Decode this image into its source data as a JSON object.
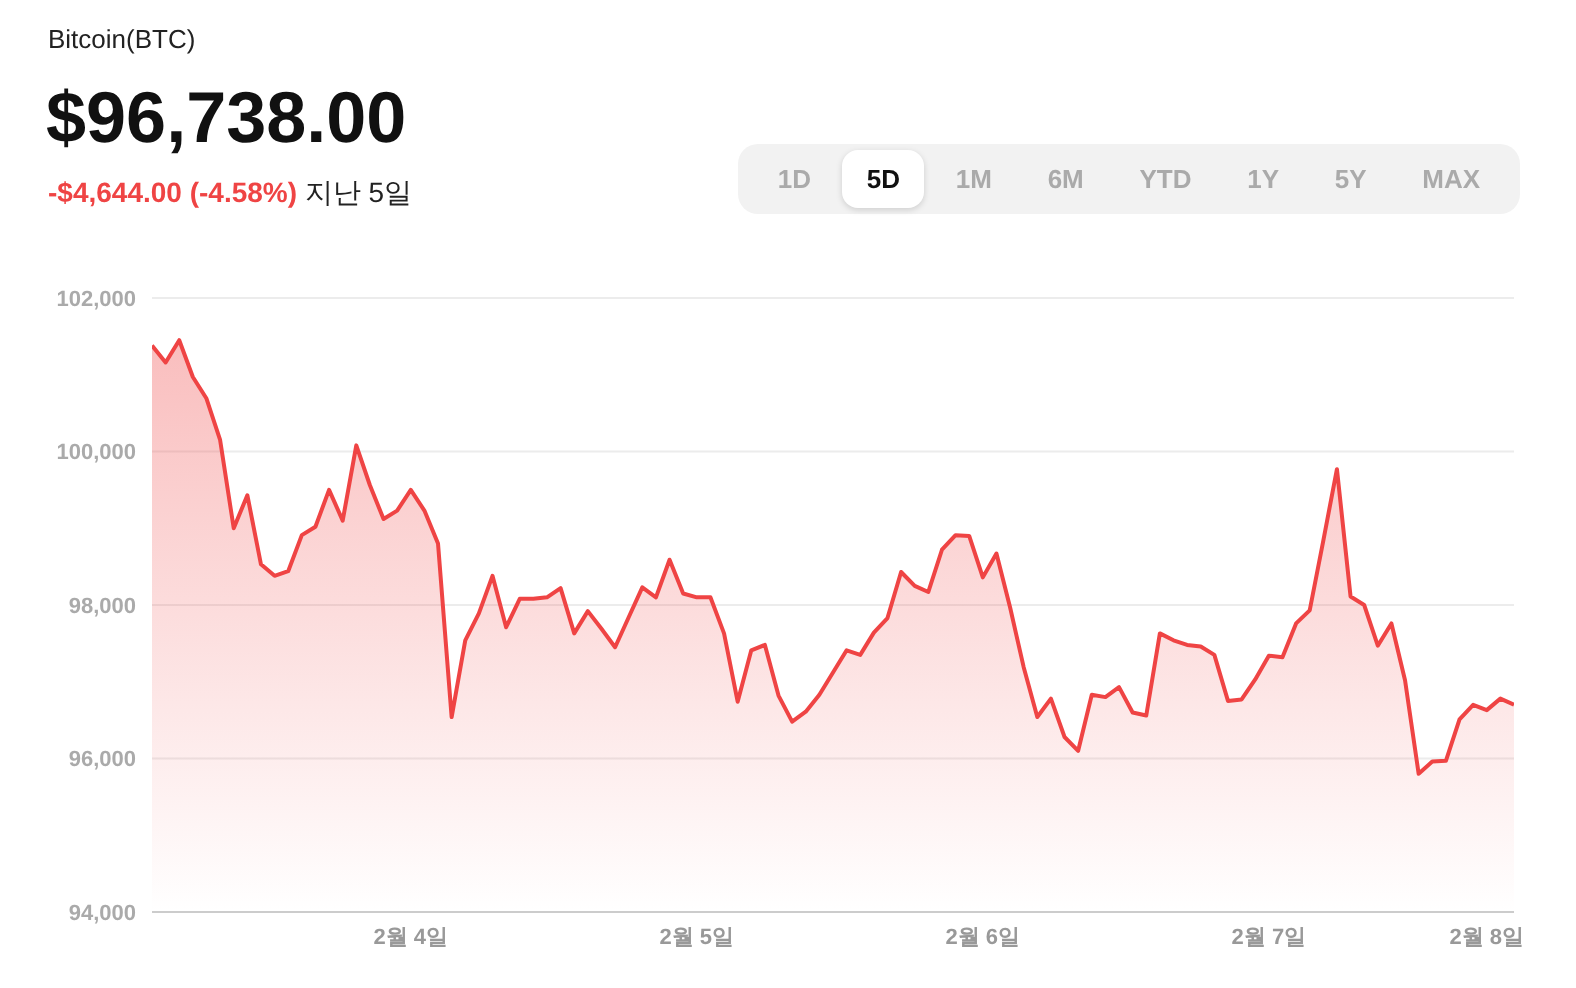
{
  "chart_data": {
    "type": "area",
    "title": "Bitcoin(BTC)",
    "subtitle": "$96,738.00",
    "annotations": [
      "-$4,644.00 (-4.58%)",
      "지난 5일",
      "1D",
      "5D",
      "1M",
      "6M",
      "YTD",
      "1Y",
      "5Y",
      "MAX"
    ],
    "categories": [
      null,
      null,
      null,
      null,
      null,
      null,
      null,
      null,
      null,
      null,
      null,
      null,
      null,
      null,
      null,
      null,
      null,
      null,
      null,
      "2월 4일",
      null,
      null,
      null,
      null,
      null,
      null,
      null,
      null,
      null,
      null,
      null,
      null,
      null,
      null,
      null,
      null,
      null,
      null,
      null,
      null,
      "2월 5일",
      null,
      null,
      null,
      null,
      null,
      null,
      null,
      null,
      null,
      null,
      null,
      null,
      null,
      null,
      null,
      null,
      null,
      null,
      null,
      null,
      "2월 6일",
      null,
      null,
      null,
      null,
      null,
      null,
      null,
      null,
      null,
      null,
      null,
      null,
      null,
      null,
      null,
      null,
      null,
      null,
      null,
      null,
      "2월 7일",
      null,
      null,
      null,
      null,
      null,
      null,
      null,
      null,
      null,
      null,
      null,
      null,
      null,
      null,
      null,
      "2월 8일",
      null,
      null
    ],
    "series": [
      {
        "color": "#ef4444",
        "values": [
          101380,
          101160,
          101450,
          100970,
          100690,
          100150,
          99000,
          99430,
          98530,
          98380,
          98440,
          98910,
          99020,
          99500,
          99100,
          100080,
          99560,
          99120,
          99230,
          99500,
          99230,
          98800,
          96540,
          97540,
          97890,
          98380,
          97710,
          98080,
          98080,
          98100,
          98220,
          97630,
          97920,
          97690,
          97450,
          97840,
          98230,
          98100,
          98590,
          98150,
          98100,
          98100,
          97630,
          96740,
          97410,
          97480,
          96820,
          96480,
          96610,
          96830,
          97120,
          97410,
          97350,
          97640,
          97830,
          98430,
          98250,
          98170,
          98720,
          98910,
          98900,
          98360,
          98670,
          97970,
          97190,
          96540,
          96780,
          96280,
          96100,
          96830,
          96800,
          96930,
          96600,
          96560,
          97630,
          97540,
          97480,
          97460,
          97350,
          96750,
          96770,
          97030,
          97340,
          97320,
          97760,
          97930,
          98840,
          99770,
          98110,
          98000,
          97470,
          97760,
          97020,
          95800,
          95960,
          95970,
          96510,
          96700,
          96630,
          96780,
          96700
        ]
      }
    ],
    "ylim": [
      94000,
      102000
    ],
    "yticks": [
      {
        "value": 94000,
        "label": "94,000"
      },
      {
        "value": 96000,
        "label": "96,000"
      },
      {
        "value": 98000,
        "label": "98,000"
      },
      {
        "value": 100000,
        "label": "100,000"
      },
      {
        "value": 102000,
        "label": "102,000"
      }
    ],
    "grid": "y",
    "marker": "none",
    "line_style": "solid"
  }
}
